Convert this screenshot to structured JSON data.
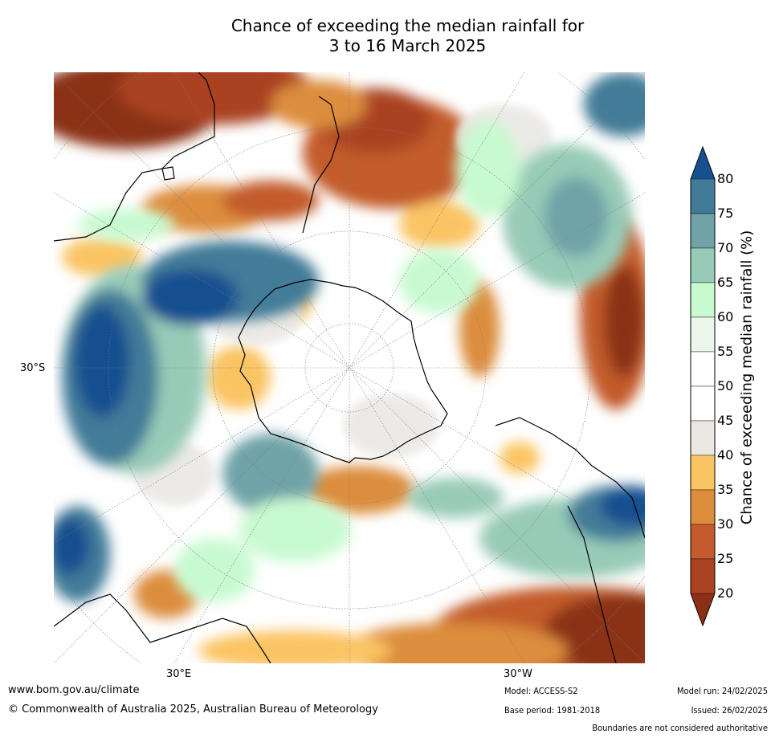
{
  "title": {
    "line1": "Chance of exceeding the median rainfall for",
    "line2": "3 to 16 March 2025"
  },
  "map": {
    "lat_label": "30°S",
    "lon_labels": [
      "30°E",
      "30°W"
    ]
  },
  "colorbar": {
    "label": "Chance of exceeding median rainfall (%)",
    "ticks": [
      "80",
      "75",
      "70",
      "65",
      "60",
      "55",
      "50",
      "45",
      "40",
      "35",
      "30",
      "25",
      "20"
    ],
    "colors": [
      "#8b3016",
      "#aa4322",
      "#c35b2c",
      "#dc8d3c",
      "#fbc463",
      "#ebe8e4",
      "#ffffff",
      "#ffffff",
      "#eaf6ea",
      "#c8fad0",
      "#98cbb7",
      "#6fa3a8",
      "#427b98",
      "#165090"
    ]
  },
  "footer": {
    "website": "www.bom.gov.au/climate",
    "copyright": "© Commonwealth of Australia 2025, Australian Bureau of Meteorology",
    "model": "Model: ACCESS-S2",
    "base_period": "Base period: 1981-2018",
    "model_run": "Model run: 24/02/2025",
    "issued": "Issued: 26/02/2025",
    "disclaimer": "Boundaries are not considered authoritative"
  }
}
